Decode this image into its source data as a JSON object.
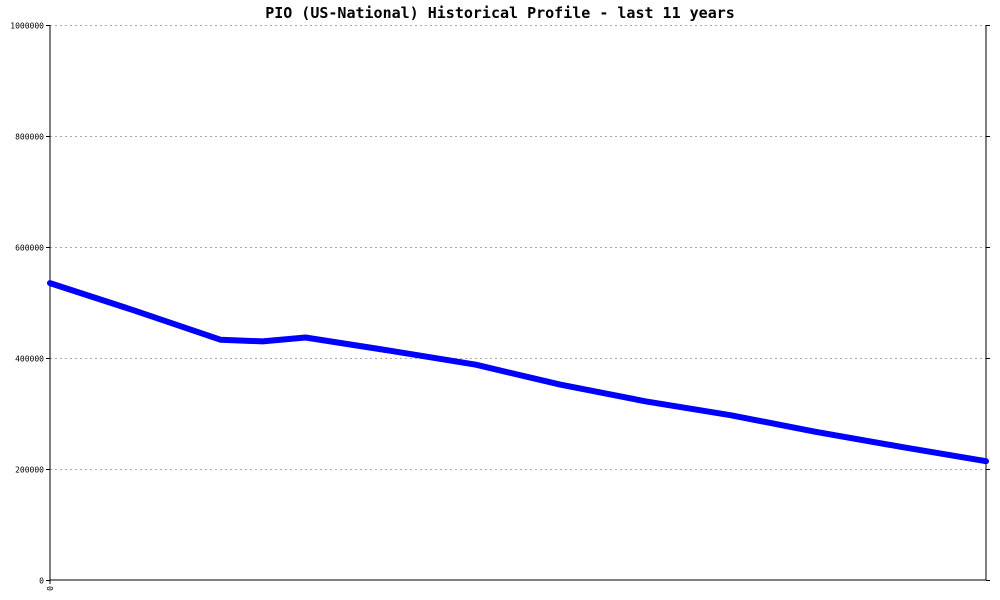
{
  "chart_data": {
    "type": "line",
    "title": "PIO (US-National) Historical Profile - last 11 years",
    "xlabel": "",
    "ylabel": "",
    "ylim": [
      0,
      1000000
    ],
    "y_ticks": [
      0,
      200000,
      400000,
      600000,
      800000,
      1000000
    ],
    "y_tick_labels": [
      "0",
      "200000",
      "400000",
      "600000",
      "800000",
      "1000000"
    ],
    "x_tick_labels": [
      "0"
    ],
    "grid": "horizontal-dotted",
    "legend": "none",
    "series": [
      {
        "color": "#0000ff",
        "points": [
          {
            "x": 0.0,
            "y": 535000
          },
          {
            "x": 0.091,
            "y": 485000
          },
          {
            "x": 0.182,
            "y": 433000
          },
          {
            "x": 0.227,
            "y": 430000
          },
          {
            "x": 0.273,
            "y": 437000
          },
          {
            "x": 0.364,
            "y": 413000
          },
          {
            "x": 0.455,
            "y": 388000
          },
          {
            "x": 0.545,
            "y": 352000
          },
          {
            "x": 0.636,
            "y": 322000
          },
          {
            "x": 0.727,
            "y": 297000
          },
          {
            "x": 0.818,
            "y": 267000
          },
          {
            "x": 0.909,
            "y": 240000
          },
          {
            "x": 1.0,
            "y": 214000
          }
        ]
      }
    ]
  }
}
